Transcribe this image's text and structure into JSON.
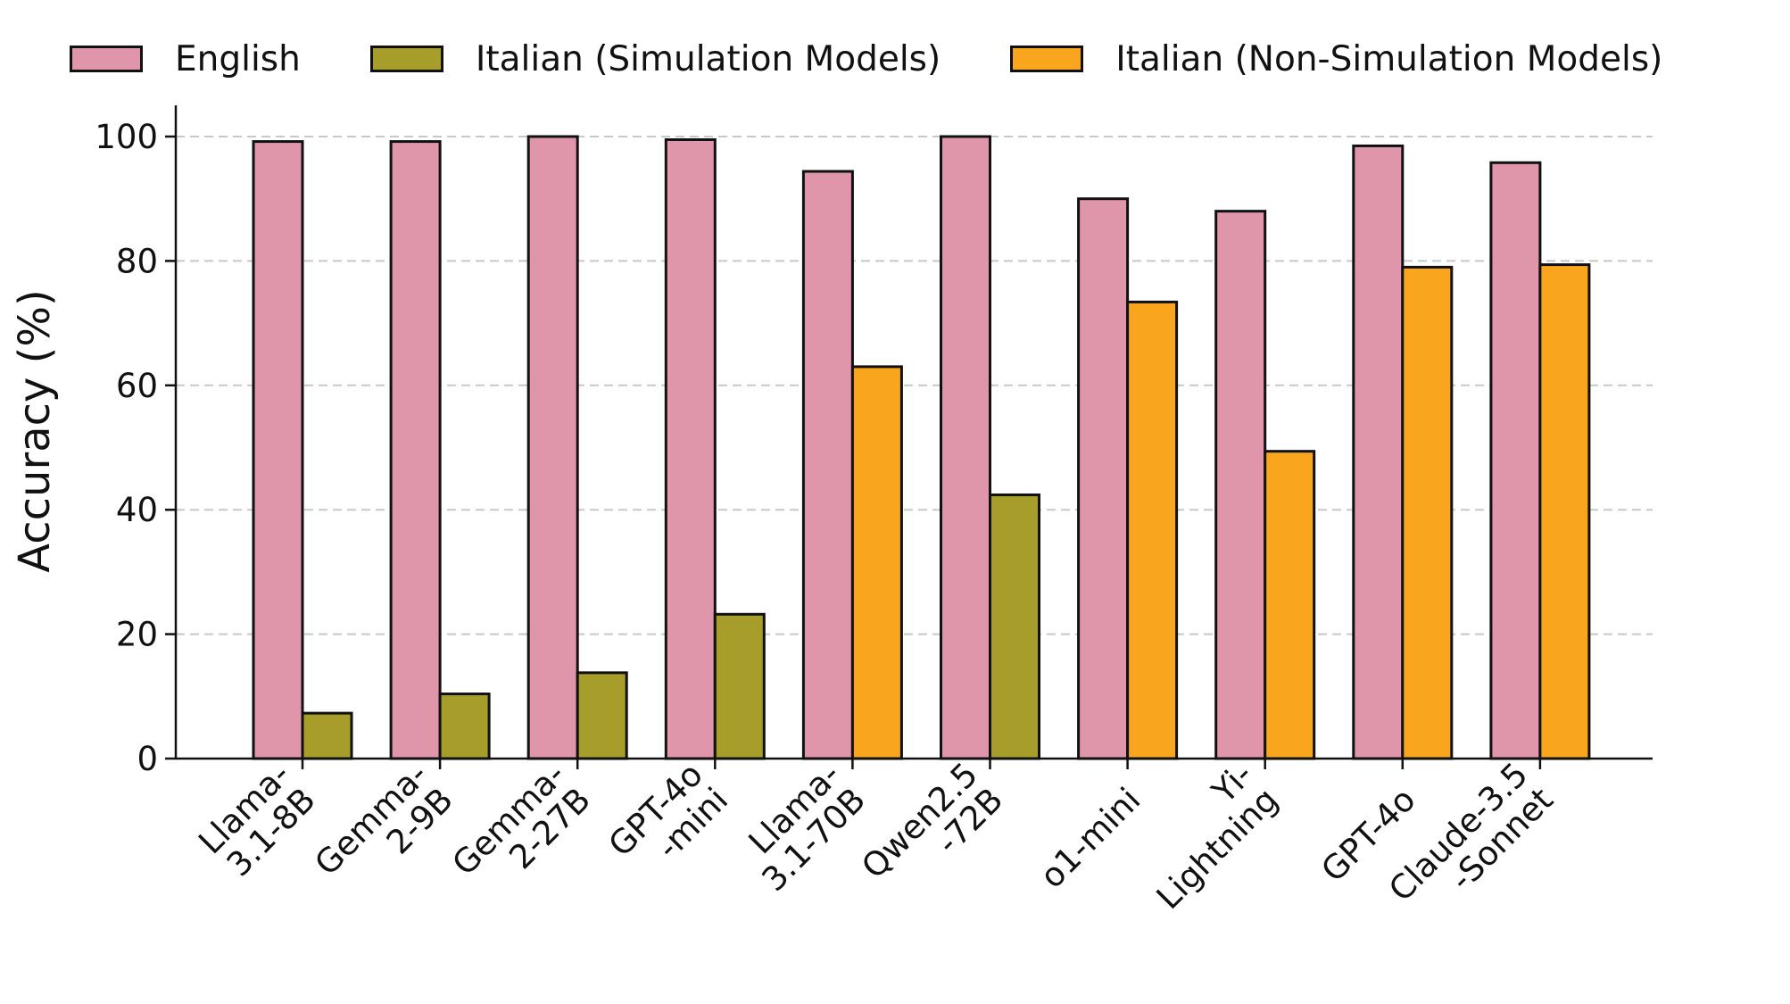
{
  "chart_data": {
    "type": "bar",
    "ylabel": "Accuracy (%)",
    "ylim": [
      0,
      105
    ],
    "yticks": [
      0,
      20,
      40,
      60,
      80,
      100
    ],
    "grid": "horizontal dashed",
    "legend_placement": "top, above plot",
    "categories": [
      "Llama-\n3.1-8B",
      "Gemma-\n2-9B",
      "Gemma-\n2-27B",
      "GPT-4o\n-mini",
      "Llama-\n3.1-70B",
      "Qwen2.5\n-72B",
      "o1-mini",
      "Yi-\nLightning",
      "GPT-4o",
      "Claude-3.5\n-Sonnet"
    ],
    "legend": [
      {
        "name": "English",
        "color": "#e096aa"
      },
      {
        "name": "Italian (Simulation Models)",
        "color": "#a69d2b"
      },
      {
        "name": "Italian (Non-Simulation Models)",
        "color": "#f9a61e"
      }
    ],
    "series": [
      {
        "name": "English",
        "color": "#e096aa",
        "values": [
          99.2,
          99.2,
          100,
          99.5,
          94.4,
          100,
          90,
          88,
          98.5,
          95.8
        ]
      },
      {
        "name": "Italian",
        "values": [
          7.3,
          10.4,
          13.8,
          23.2,
          63,
          42.4,
          73.4,
          49.4,
          79,
          79.4
        ],
        "colors": [
          "#a69d2b",
          "#a69d2b",
          "#a69d2b",
          "#a69d2b",
          "#f9a61e",
          "#a69d2b",
          "#f9a61e",
          "#f9a61e",
          "#f9a61e",
          "#f9a61e"
        ]
      }
    ]
  }
}
